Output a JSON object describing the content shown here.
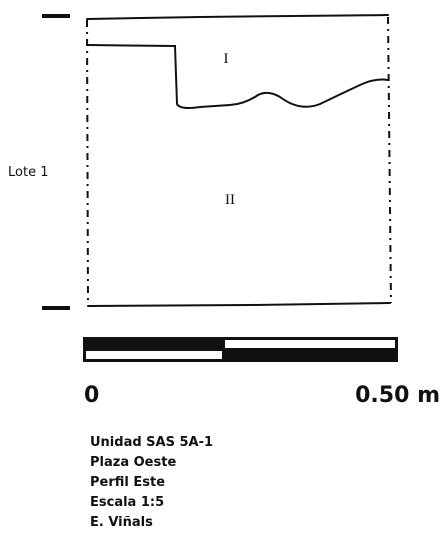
{
  "lot_label": "Lote 1",
  "layers": [
    "I",
    "II"
  ],
  "scale": {
    "start": "0",
    "end": "0.50 m"
  },
  "caption": [
    "Unidad SAS 5A-1",
    "Plaza Oeste",
    "Perfil Este",
    "Escala 1:5",
    "E. Viñals"
  ]
}
